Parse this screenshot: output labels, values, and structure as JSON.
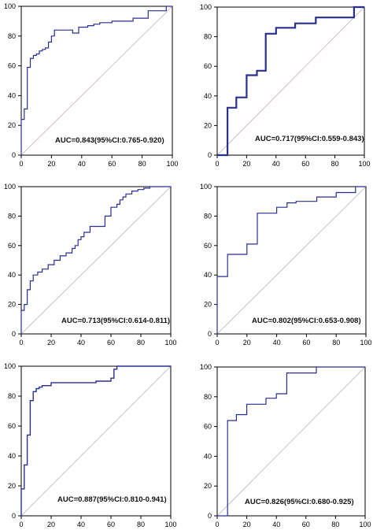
{
  "chart_data": [
    {
      "type": "line",
      "xlim": [
        0,
        100
      ],
      "ylim": [
        0,
        100
      ],
      "xticks": [
        0,
        20,
        40,
        60,
        80,
        100
      ],
      "yticks": [
        0,
        20,
        40,
        60,
        80,
        100
      ],
      "annotation": "AUC=0.843(95%CI:0.765-0.920)",
      "x": [
        0,
        0,
        2,
        2,
        4,
        4,
        6,
        6,
        8,
        8,
        10,
        10,
        12,
        12,
        14,
        14,
        16,
        16,
        18,
        18,
        20,
        20,
        22,
        22,
        34,
        34,
        38,
        38,
        44,
        44,
        48,
        48,
        52,
        52,
        60,
        60,
        74,
        74,
        84,
        84,
        96,
        96,
        100
      ],
      "y": [
        0,
        24,
        24,
        31,
        31,
        59,
        59,
        65,
        65,
        67,
        67,
        68,
        68,
        70,
        70,
        71,
        71,
        72,
        72,
        76,
        76,
        80,
        80,
        84,
        84,
        82,
        82,
        86,
        86,
        87,
        87,
        88,
        88,
        89,
        89,
        90,
        90,
        92,
        92,
        97,
        97,
        100,
        100
      ]
    },
    {
      "type": "line",
      "xlim": [
        0,
        100
      ],
      "ylim": [
        0,
        100
      ],
      "xticks": [
        0,
        20,
        40,
        60,
        80,
        100
      ],
      "yticks": [
        0,
        20,
        40,
        60,
        80,
        100
      ],
      "annotation": "AUC=0.717(95%CI:0.559-0.843)",
      "x": [
        0,
        7,
        7,
        13,
        13,
        20,
        20,
        27,
        27,
        33,
        33,
        40,
        40,
        53,
        53,
        67,
        67,
        93,
        93,
        100
      ],
      "y": [
        0,
        0,
        32,
        32,
        39,
        39,
        54,
        54,
        57,
        57,
        82,
        82,
        86,
        86,
        89,
        89,
        93,
        93,
        100,
        100
      ]
    },
    {
      "type": "line",
      "xlim": [
        0,
        100
      ],
      "ylim": [
        0,
        100
      ],
      "xticks": [
        0,
        20,
        40,
        60,
        80,
        100
      ],
      "yticks": [
        0,
        20,
        40,
        60,
        80,
        100
      ],
      "annotation": "AUC=0.713(95%CI:0.614-0.811)",
      "x": [
        0,
        0,
        2,
        2,
        4,
        4,
        6,
        6,
        8,
        8,
        11,
        11,
        14,
        14,
        18,
        18,
        22,
        22,
        26,
        26,
        30,
        30,
        34,
        34,
        36,
        36,
        38,
        38,
        40,
        40,
        42,
        42,
        46,
        46,
        56,
        56,
        60,
        60,
        64,
        64,
        66,
        66,
        68,
        68,
        70,
        70,
        74,
        74,
        78,
        78,
        82,
        82,
        86,
        86,
        100
      ],
      "y": [
        0,
        16,
        16,
        20,
        20,
        30,
        30,
        36,
        36,
        40,
        40,
        42,
        42,
        44,
        44,
        47,
        47,
        50,
        50,
        53,
        53,
        55,
        55,
        58,
        58,
        60,
        60,
        64,
        64,
        66,
        66,
        69,
        69,
        73,
        73,
        80,
        80,
        86,
        86,
        88,
        88,
        91,
        91,
        93,
        93,
        95,
        95,
        97,
        97,
        98,
        98,
        99,
        99,
        100,
        100
      ]
    },
    {
      "type": "line",
      "xlim": [
        0,
        100
      ],
      "ylim": [
        0,
        100
      ],
      "xticks": [
        0,
        20,
        40,
        60,
        80,
        100
      ],
      "yticks": [
        0,
        20,
        40,
        60,
        80,
        100
      ],
      "annotation": "AUC=0.802(95%CI:0.653-0.908)",
      "x": [
        0,
        0,
        7,
        7,
        20,
        20,
        27,
        27,
        40,
        40,
        47,
        47,
        53,
        53,
        67,
        67,
        80,
        80,
        93,
        93,
        100
      ],
      "y": [
        0,
        39,
        39,
        54,
        54,
        61,
        61,
        82,
        82,
        86,
        86,
        89,
        89,
        90,
        90,
        93,
        93,
        96,
        96,
        100,
        100
      ]
    },
    {
      "type": "line",
      "xlim": [
        0,
        100
      ],
      "ylim": [
        0,
        100
      ],
      "xticks": [
        0,
        20,
        40,
        60,
        80,
        100
      ],
      "yticks": [
        0,
        20,
        40,
        60,
        80,
        100
      ],
      "annotation": "AUC=0.887(95%CI:0.810-0.941)",
      "x": [
        0,
        0,
        2,
        2,
        4,
        4,
        6,
        6,
        8,
        8,
        10,
        10,
        12,
        12,
        14,
        14,
        16,
        16,
        20,
        20,
        50,
        50,
        60,
        60,
        62,
        62,
        64,
        64,
        100
      ],
      "y": [
        0,
        18,
        18,
        34,
        34,
        54,
        54,
        77,
        77,
        83,
        83,
        85,
        85,
        86,
        86,
        87,
        87,
        87,
        87,
        89,
        89,
        90,
        90,
        92,
        92,
        98,
        98,
        100,
        100
      ]
    },
    {
      "type": "line",
      "xlim": [
        0,
        100
      ],
      "ylim": [
        0,
        100
      ],
      "xticks": [
        0,
        20,
        40,
        60,
        80,
        100
      ],
      "yticks": [
        0,
        20,
        40,
        60,
        80,
        100
      ],
      "annotation": "AUC=0.826(95%CI:0.680-0.925)",
      "x": [
        0,
        7,
        7,
        13,
        13,
        20,
        20,
        33,
        33,
        40,
        40,
        47,
        47,
        67,
        67,
        100
      ],
      "y": [
        0,
        0,
        64,
        64,
        68,
        68,
        75,
        75,
        79,
        79,
        82,
        82,
        96,
        96,
        100,
        100
      ]
    }
  ]
}
